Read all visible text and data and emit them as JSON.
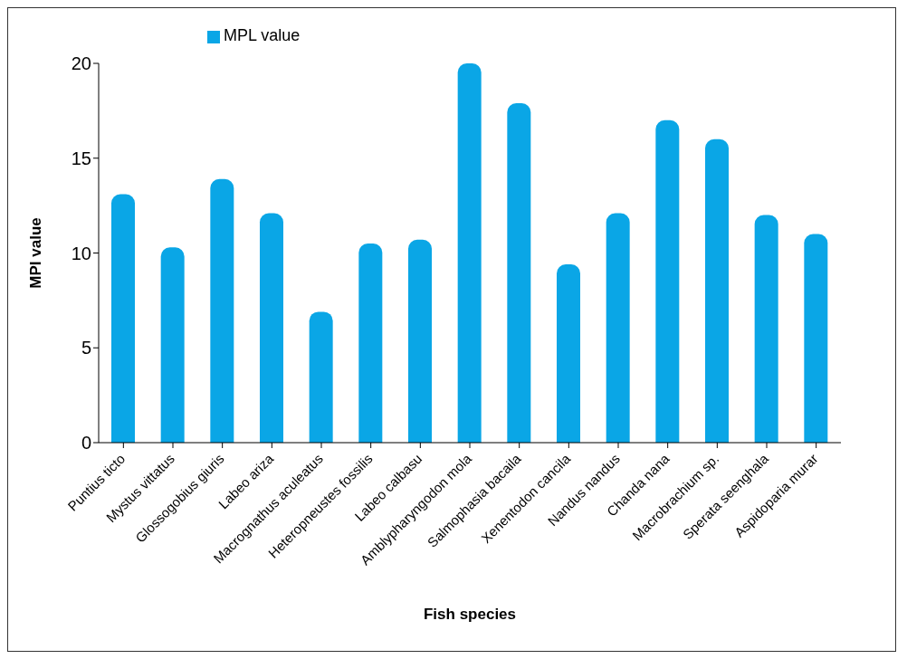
{
  "chart_data": {
    "type": "bar",
    "xlabel": "Fish species",
    "ylabel": "MPI value",
    "categories": [
      "Puntius ticto",
      "Mystus vittatus",
      "Glossogobius giuris",
      "Labeo ariza",
      "Macrognathus aculeatus",
      "Heteropneustes fossilis",
      "Labeo calbasu",
      "Amblypharyngodon mola",
      "Salmophasia bacaila",
      "Xenentodon cancila",
      "Nandus nandus",
      "Chanda nana",
      "Macrobrachium sp.",
      "Sperata seenghala",
      "Aspidoparia murar"
    ],
    "series": [
      {
        "name": "MPL value",
        "color": "#0aa6e6",
        "values": [
          13.1,
          10.3,
          13.9,
          12.1,
          6.9,
          10.5,
          10.7,
          20.0,
          17.9,
          9.4,
          12.1,
          17.0,
          16.0,
          12.0,
          11.0
        ]
      }
    ],
    "ylim": [
      0,
      20
    ],
    "yticks": [
      0,
      5,
      10,
      15,
      20
    ],
    "grid": false,
    "legend": "top left"
  }
}
